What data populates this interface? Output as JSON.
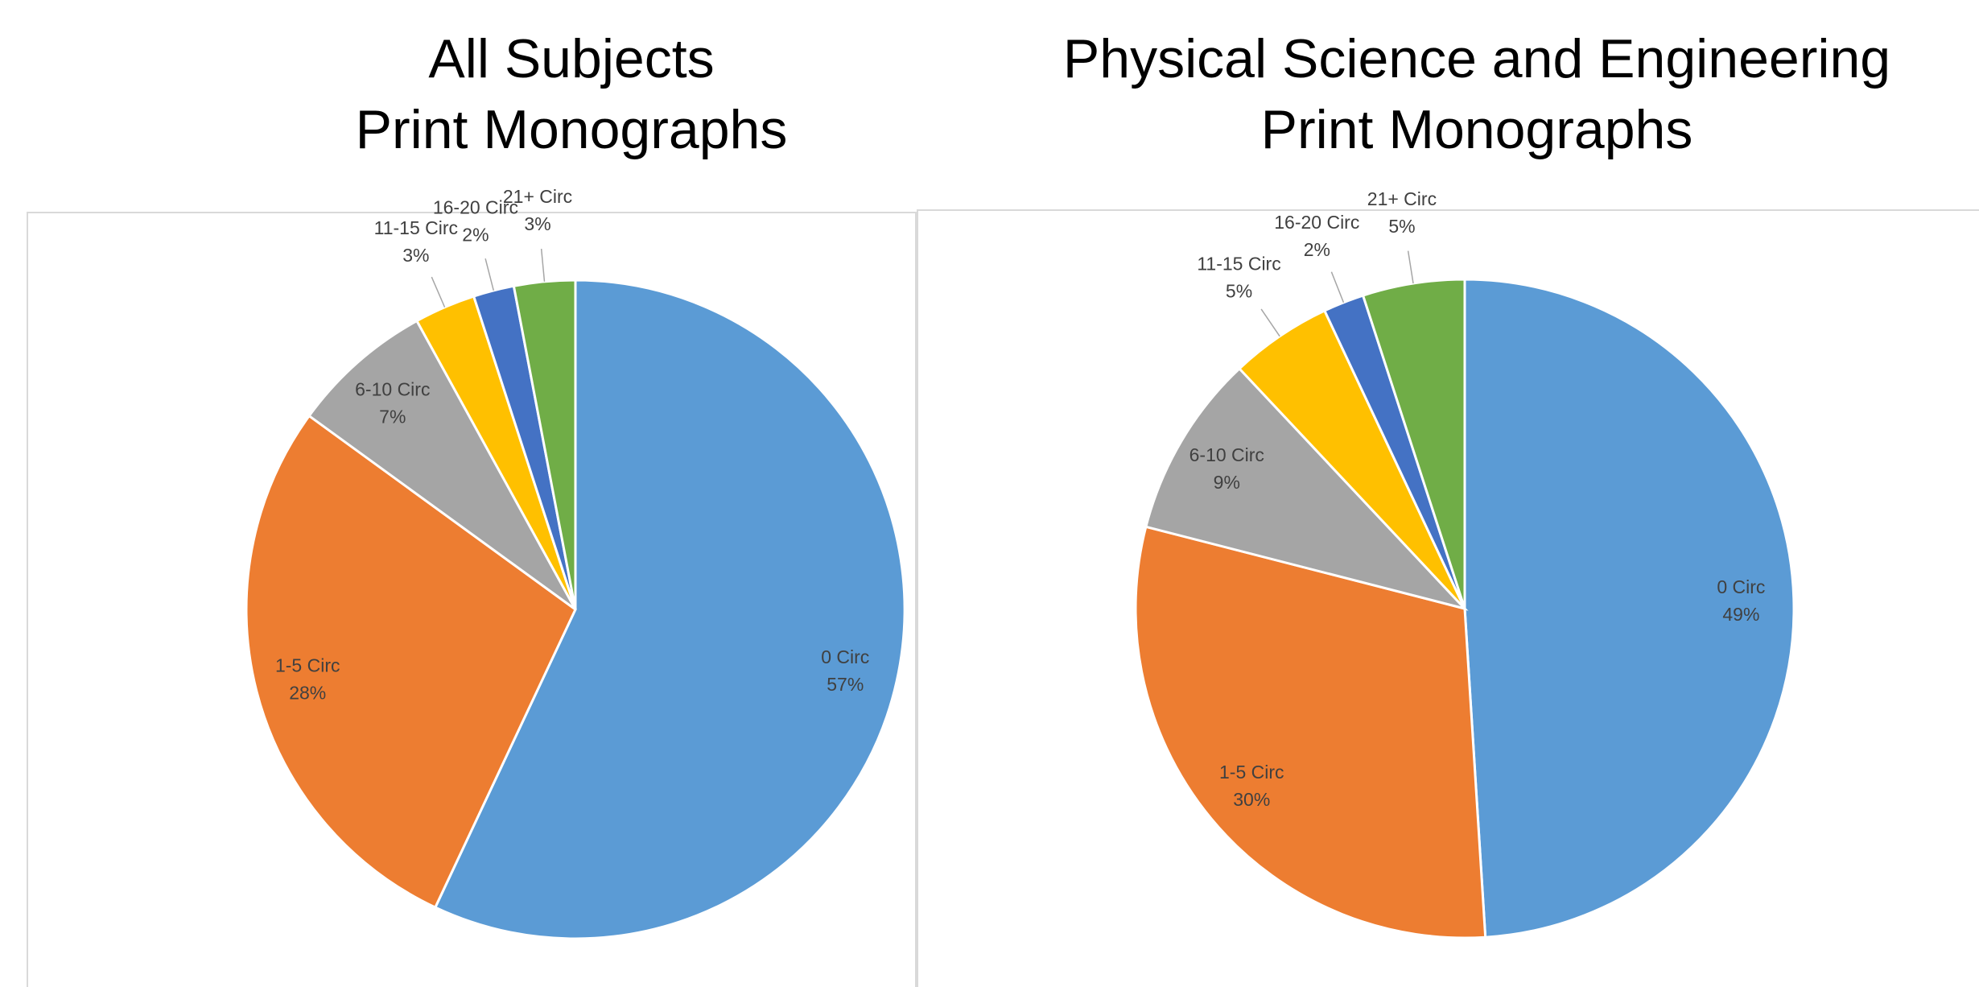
{
  "chart_data": [
    {
      "type": "pie",
      "title": [
        "All Subjects",
        "Print Monographs"
      ],
      "categories": [
        "0 Circ",
        "1-5 Circ",
        "6-10 Circ",
        "11-15 Circ",
        "16-20 Circ",
        "21+ Circ"
      ],
      "values": [
        57,
        28,
        7,
        3,
        2,
        3
      ],
      "value_labels": [
        "57%",
        "28%",
        "7%",
        "3%",
        "2%",
        "3%"
      ],
      "colors": [
        "#5b9bd5",
        "#ed7d31",
        "#a5a5a5",
        "#ffc000",
        "#4472c4",
        "#70ad47"
      ]
    },
    {
      "type": "pie",
      "title": [
        "Physical Science and Engineering",
        "Print Monographs"
      ],
      "categories": [
        "0 Circ",
        "1-5 Circ",
        "6-10 Circ",
        "11-15 Circ",
        "16-20 Circ",
        "21+ Circ"
      ],
      "values": [
        49,
        30,
        9,
        5,
        2,
        5
      ],
      "value_labels": [
        "49%",
        "30%",
        "9%",
        "5%",
        "2%",
        "5%"
      ],
      "colors": [
        "#5b9bd5",
        "#ed7d31",
        "#a5a5a5",
        "#ffc000",
        "#4472c4",
        "#70ad47"
      ]
    }
  ]
}
